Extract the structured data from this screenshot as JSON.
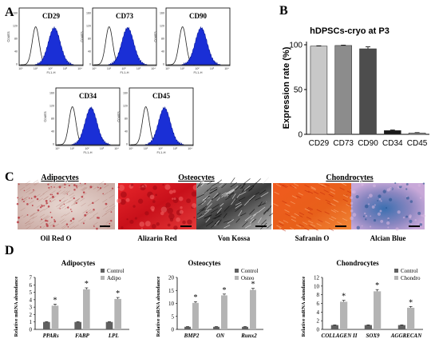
{
  "panels": {
    "A": "A",
    "B": "B",
    "C": "C",
    "D": "D"
  },
  "flow": {
    "markers": [
      "CD29",
      "CD73",
      "CD90",
      "CD34",
      "CD45"
    ],
    "y_ticks": [
      "160",
      "120",
      "80",
      "40",
      "0"
    ],
    "y_label": "Counts",
    "x_ticks": [
      "10⁰",
      "10¹",
      "10²",
      "10³",
      "10⁴"
    ],
    "x_label": "FL1-H"
  },
  "photos": {
    "groups": [
      "Adipocytes",
      "Osteocytes",
      "Chondrocytes"
    ],
    "stains": [
      "Oil Red O",
      "Alizarin Red",
      "Von Kossa",
      "Safranin O",
      "Alcian Blue"
    ]
  },
  "chart_data": [
    {
      "type": "bar",
      "title": "hDPSCs-cryo at P3",
      "ylabel": "Expression rate (%)",
      "categories": [
        "CD29",
        "CD73",
        "CD90",
        "CD34",
        "CD45"
      ],
      "values": [
        98.5,
        99.2,
        95.5,
        4.2,
        1.5
      ],
      "errors": [
        0.4,
        0.4,
        2.2,
        0.6,
        0.4
      ],
      "colors": [
        "#c8c8c8",
        "#8c8c8c",
        "#4d4d4d",
        "#1a1a1a",
        "#a0a0a0"
      ],
      "ylim": [
        0,
        100
      ],
      "yticks": [
        "0",
        "50",
        "100"
      ]
    },
    {
      "type": "bar",
      "title": "Adipocytes",
      "ylabel": "Relative mRNA abundance",
      "categories": [
        "PPARs",
        "FABP",
        "LPL"
      ],
      "ylim": [
        0,
        7
      ],
      "yticks": [
        "0",
        "1",
        "2",
        "3",
        "4",
        "5",
        "6",
        "7"
      ],
      "series": [
        {
          "name": "Control",
          "values": [
            1.0,
            1.0,
            1.0
          ],
          "errors": [
            0.05,
            0.05,
            0.05
          ],
          "color": "#606060"
        },
        {
          "name": "Adipo",
          "values": [
            3.2,
            5.4,
            4.1
          ],
          "errors": [
            0.2,
            0.2,
            0.2
          ],
          "color": "#b4b4b4"
        }
      ],
      "marks": [
        "*",
        "*",
        "*"
      ],
      "legend": "top-right"
    },
    {
      "type": "bar",
      "title": "Osteocytes",
      "ylabel": "Relative mRNA abundance",
      "categories": [
        "BMP2",
        "ON",
        "Runx2"
      ],
      "ylim": [
        0,
        20
      ],
      "yticks": [
        "0",
        "5",
        "10",
        "15",
        "20"
      ],
      "series": [
        {
          "name": "Control",
          "values": [
            1.0,
            1.0,
            1.0
          ],
          "errors": [
            0.1,
            0.1,
            0.1
          ],
          "color": "#606060"
        },
        {
          "name": "Osteo",
          "values": [
            10.2,
            13.1,
            15.2
          ],
          "errors": [
            0.5,
            0.5,
            0.6
          ],
          "color": "#b4b4b4"
        }
      ],
      "marks": [
        "*",
        "*",
        "*"
      ],
      "legend": "top-right"
    },
    {
      "type": "bar",
      "title": "Chondrocytes",
      "ylabel": "Relative mRNA abundance",
      "categories": [
        "COLLAGEN II",
        "SOX9",
        "AGGRECAN"
      ],
      "ylim": [
        0,
        12
      ],
      "yticks": [
        "0",
        "2",
        "4",
        "6",
        "8",
        "10",
        "12"
      ],
      "series": [
        {
          "name": "Control",
          "values": [
            1.0,
            1.0,
            1.0
          ],
          "errors": [
            0.05,
            0.05,
            0.05
          ],
          "color": "#606060"
        },
        {
          "name": "Chondro",
          "values": [
            6.4,
            8.8,
            5.0
          ],
          "errors": [
            0.3,
            0.4,
            0.3
          ],
          "color": "#b4b4b4"
        }
      ],
      "marks": [
        "*",
        "*",
        "*"
      ],
      "legend": "top-right"
    }
  ]
}
